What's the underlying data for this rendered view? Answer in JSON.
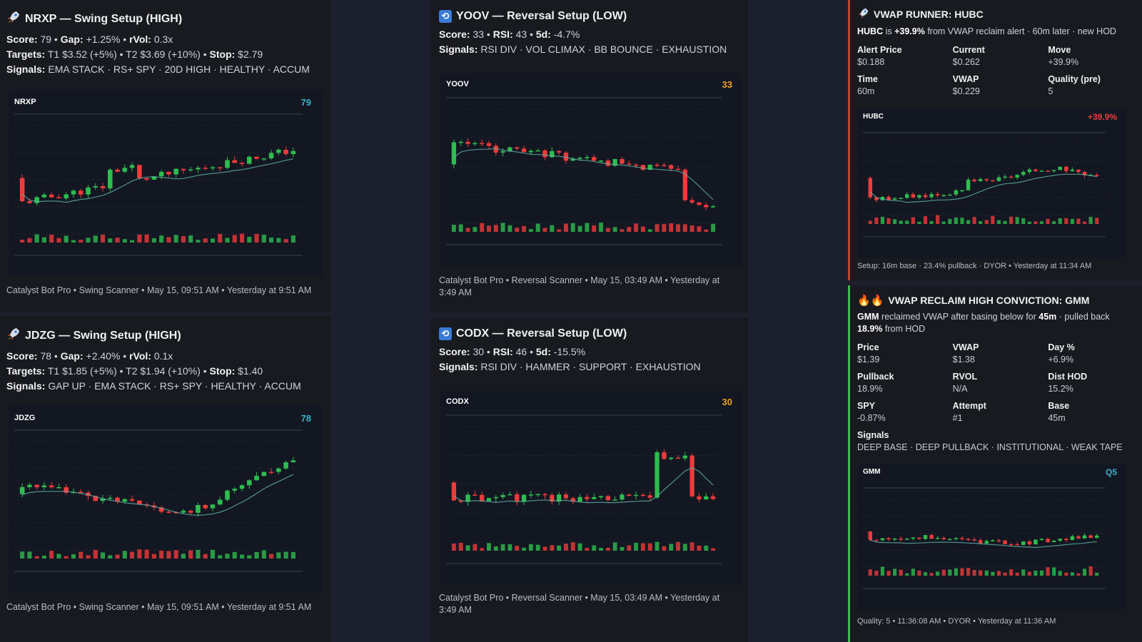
{
  "colors": {
    "bg": "#181a20",
    "chart_bg": "#131722",
    "up": "#26a69a",
    "green_candle": "#2ebd4f",
    "red_candle": "#ef3b3b",
    "score_teal": "#38b2c8",
    "score_orange": "#f0a020",
    "accent_red": "#d0392b",
    "accent_green": "#3fb950"
  },
  "cards": [
    {
      "icon": "rocket-icon",
      "title": "NRXP — Swing Setup (HIGH)",
      "l1": [
        {
          "k": "Score:",
          "v": " 79 • "
        },
        {
          "k": "Gap:",
          "v": " +1.25% • "
        },
        {
          "k": "rVol:",
          "v": " 0.3x"
        }
      ],
      "l2": [
        {
          "k": "Targets:",
          "v": " T1 $3.52 (+5%) • T2 $3.69 (+10%) • "
        },
        {
          "k": "Stop:",
          "v": " $2.79"
        }
      ],
      "l3": [
        {
          "k": "Signals:",
          "v": " EMA STACK · RS+ SPY · 20D HIGH · HEALTHY · ACCUM"
        }
      ],
      "chart_ticker": "NRXP",
      "chart_score": "79",
      "footer": "Catalyst Bot Pro • Swing Scanner • May 15, 09:51 AM • Yesterday at 9:51 AM"
    },
    {
      "icon": "cycle-icon",
      "title": "YOOV — Reversal Setup (LOW)",
      "l1": [
        {
          "k": "Score:",
          "v": " 33 • "
        },
        {
          "k": "RSI:",
          "v": " 43 • "
        },
        {
          "k": "5d:",
          "v": " -4.7%"
        }
      ],
      "l3": [
        {
          "k": "Signals:",
          "v": " RSI DIV · VOL CLIMAX · BB BOUNCE · EXHAUSTION"
        }
      ],
      "chart_ticker": "YOOV",
      "chart_score": "33",
      "footer": "Catalyst Bot Pro • Reversal Scanner • May 15, 03:49 AM • Yesterday at 3:49 AM"
    },
    {
      "icon": "rocket-icon",
      "title": "JDZG — Swing Setup (HIGH)",
      "l1": [
        {
          "k": "Score:",
          "v": " 78 • "
        },
        {
          "k": "Gap:",
          "v": " +2.40% • "
        },
        {
          "k": "rVol:",
          "v": " 0.1x"
        }
      ],
      "l2": [
        {
          "k": "Targets:",
          "v": " T1 $1.85 (+5%) • T2 $1.94 (+10%) • "
        },
        {
          "k": "Stop:",
          "v": " $1.40"
        }
      ],
      "l3": [
        {
          "k": "Signals:",
          "v": " GAP UP · EMA STACK · RS+ SPY · HEALTHY · ACCUM"
        }
      ],
      "chart_ticker": "JDZG",
      "chart_score": "78",
      "footer": "Catalyst Bot Pro • Swing Scanner • May 15, 09:51 AM • Yesterday at 9:51 AM"
    },
    {
      "icon": "cycle-icon",
      "title": "CODX — Reversal Setup (LOW)",
      "l1": [
        {
          "k": "Score:",
          "v": " 30 • "
        },
        {
          "k": "RSI:",
          "v": " 46 • "
        },
        {
          "k": "5d:",
          "v": " -15.5%"
        }
      ],
      "l3": [
        {
          "k": "Signals:",
          "v": " RSI DIV · HAMMER · SUPPORT · EXHAUSTION"
        }
      ],
      "chart_ticker": "CODX",
      "chart_score": "30",
      "footer": "Catalyst Bot Pro • Reversal Scanner • May 15, 03:49 AM • Yesterday at 3:49 AM"
    }
  ],
  "runner": {
    "title": "VWAP RUNNER: HUBC",
    "desc_ticker": "HUBC",
    "desc_mid": " is ",
    "desc_move": "+39.9%",
    "desc_rest": " from VWAP reclaim alert · 60m later · new HOD",
    "kv": [
      {
        "k": "Alert Price",
        "v": "$0.188"
      },
      {
        "k": "Current",
        "v": "$0.262"
      },
      {
        "k": "Move",
        "v": "+39.9%"
      },
      {
        "k": "Time",
        "v": "60m"
      },
      {
        "k": "VWAP",
        "v": "$0.229"
      },
      {
        "k": "Quality (pre)",
        "v": "5"
      }
    ],
    "chart_ticker": "HUBC",
    "chart_score": "+39.9%",
    "footer": "Setup: 16m base · 23.4% pullback · DYOR • Yesterday at 11:34 AM"
  },
  "reclaim": {
    "title": "VWAP RECLAIM HIGH CONVICTION: GMM",
    "desc_ticker": "GMM",
    "desc_mid": " reclaimed VWAP after basing below for ",
    "desc_time": "45m",
    "desc_mid2": " · pulled back ",
    "desc_pb": "18.9%",
    "desc_rest": " from HOD",
    "kv": [
      {
        "k": "Price",
        "v": "$1.39"
      },
      {
        "k": "VWAP",
        "v": "$1.38"
      },
      {
        "k": "Day %",
        "v": "+6.9%"
      },
      {
        "k": "Pullback",
        "v": "18.9%"
      },
      {
        "k": "RVOL",
        "v": "N/A"
      },
      {
        "k": "Dist HOD",
        "v": "15.2%"
      },
      {
        "k": "SPY",
        "v": "-0.87%"
      },
      {
        "k": "Attempt",
        "v": "#1"
      },
      {
        "k": "Base",
        "v": "45m"
      }
    ],
    "signals_label": "Signals",
    "signals": "DEEP BASE · DEEP PULLBACK · INSTITUTIONAL · WEAK TAPE",
    "chart_ticker": "GMM",
    "chart_score": "Q5",
    "footer": "Quality: 5 • 11:36:08 AM • DYOR • Yesterday at 11:36 AM"
  }
}
